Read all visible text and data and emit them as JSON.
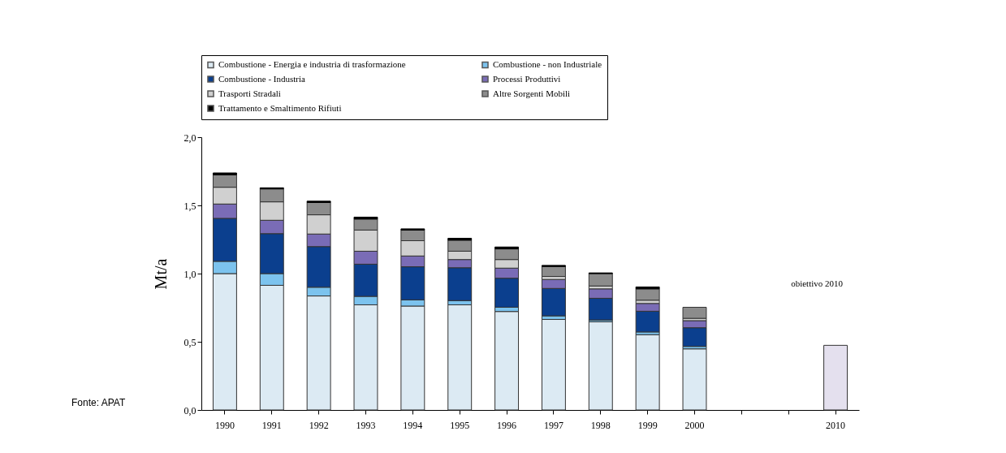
{
  "chart_data": {
    "type": "bar",
    "stacked": true,
    "ylabel": "Mt/a",
    "categories": [
      "1990",
      "1991",
      "1992",
      "1993",
      "1994",
      "1995",
      "1996",
      "1997",
      "1998",
      "1999",
      "2000",
      null,
      null,
      "2010"
    ],
    "series": [
      {
        "name": "Combustione - Energia e industria di trasformazione",
        "color": "#dceaf3",
        "values": [
          1.0,
          0.914,
          0.836,
          0.771,
          0.762,
          0.771,
          0.722,
          0.664,
          0.647,
          0.552,
          0.448,
          null,
          null,
          null
        ]
      },
      {
        "name": "Combustione - non Industriale",
        "color": "#7cc3ee",
        "values": [
          0.09,
          0.086,
          0.064,
          0.062,
          0.045,
          0.031,
          0.031,
          0.026,
          0.013,
          0.02,
          0.018,
          null,
          null,
          null
        ]
      },
      {
        "name": "Combustione - Industria",
        "color": "#0b3f8e",
        "values": [
          0.315,
          0.293,
          0.298,
          0.236,
          0.243,
          0.241,
          0.213,
          0.201,
          0.159,
          0.152,
          0.137,
          null,
          null,
          null
        ]
      },
      {
        "name": "Processi Produttivi",
        "color": "#7a6cb6",
        "values": [
          0.105,
          0.098,
          0.092,
          0.095,
          0.079,
          0.06,
          0.074,
          0.066,
          0.069,
          0.057,
          0.052,
          null,
          null,
          null
        ]
      },
      {
        "name": "Trasporti Stradali",
        "color": "#d0d0d0",
        "values": [
          0.123,
          0.135,
          0.141,
          0.155,
          0.112,
          0.061,
          0.063,
          0.022,
          0.021,
          0.024,
          0.017,
          null,
          null,
          null
        ]
      },
      {
        "name": "Altre Sorgenti Mobili",
        "color": "#8c8c8c",
        "values": [
          0.091,
          0.095,
          0.09,
          0.081,
          0.078,
          0.081,
          0.078,
          0.073,
          0.091,
          0.083,
          0.081,
          null,
          null,
          null
        ]
      },
      {
        "name": "Trattamento e Smaltimento Rifiuti",
        "color": "#000000",
        "values": [
          0.014,
          0.008,
          0.01,
          0.014,
          0.009,
          0.014,
          0.014,
          0.008,
          0.005,
          0.014,
          null,
          null,
          null,
          null
        ]
      },
      {
        "color": "#e4e0ee",
        "values": [
          null,
          null,
          null,
          null,
          null,
          null,
          null,
          null,
          null,
          null,
          null,
          null,
          null,
          0.474
        ]
      }
    ],
    "ylim": [
      0,
      2.0
    ],
    "yticks": [
      {
        "value": 0,
        "label": "0,0"
      },
      {
        "value": 0.5,
        "label": "0,5"
      },
      {
        "value": 1.0,
        "label": "1,0"
      },
      {
        "value": 1.5,
        "label": "1,5"
      },
      {
        "value": 2.0,
        "label": "2,0"
      }
    ],
    "grid": false,
    "legend": "top",
    "annotations": [
      "Fonte: APAT",
      "obiettivo 2010"
    ]
  }
}
